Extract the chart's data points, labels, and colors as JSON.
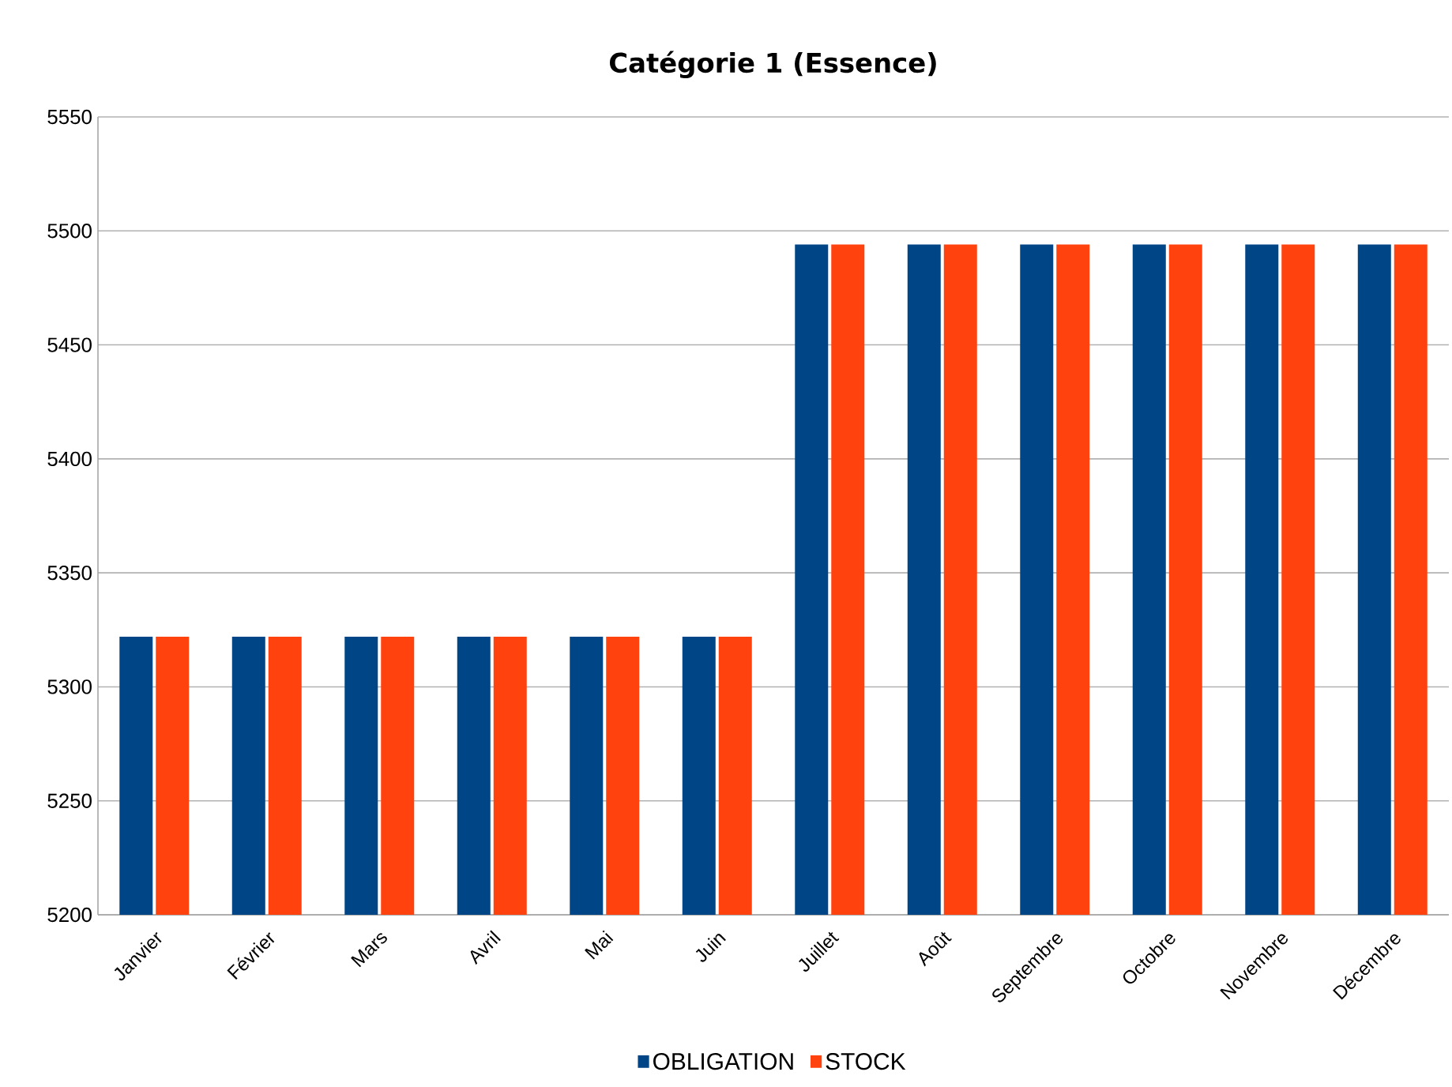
{
  "chart_data": {
    "type": "bar",
    "title": "Catégorie 1 (Essence)",
    "categories": [
      "Janvier",
      "Février",
      "Mars",
      "Avril",
      "Mai",
      "Juin",
      "Juillet",
      "Août",
      "Septembre",
      "Octobre",
      "Novembre",
      "Décembre"
    ],
    "series": [
      {
        "name": "OBLIGATION",
        "color": "#004586",
        "values": [
          5322,
          5322,
          5322,
          5322,
          5322,
          5322,
          5494,
          5494,
          5494,
          5494,
          5494,
          5494
        ]
      },
      {
        "name": "STOCK",
        "color": "#ff420e",
        "values": [
          5322,
          5322,
          5322,
          5322,
          5322,
          5322,
          5494,
          5494,
          5494,
          5494,
          5494,
          5494
        ]
      }
    ],
    "ylim": [
      5200,
      5550
    ],
    "yticks": [
      5200,
      5250,
      5300,
      5350,
      5400,
      5450,
      5500,
      5550
    ],
    "grid": "y",
    "legend": "bottom"
  }
}
